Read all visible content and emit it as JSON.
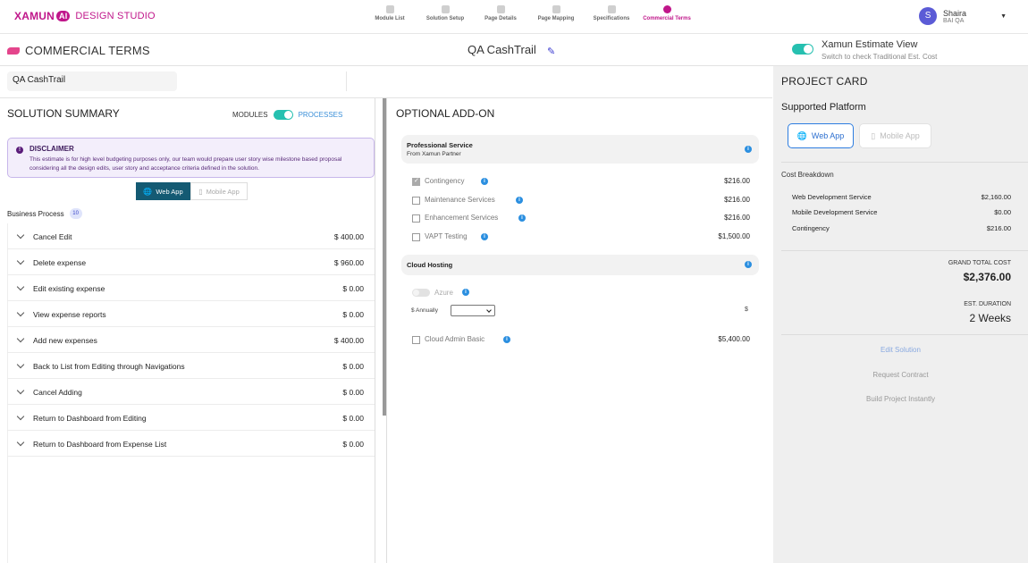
{
  "brand": {
    "prefix": "XAMUN",
    "ai": "AI",
    "suffix": "DESIGN STUDIO"
  },
  "steps": [
    {
      "label": "Module List"
    },
    {
      "label": "Solution Setup"
    },
    {
      "label": "Page Details"
    },
    {
      "label": "Page Mapping"
    },
    {
      "label": "Specifications"
    },
    {
      "label": "Commercial Terms"
    }
  ],
  "user": {
    "initial": "S",
    "name": "Shaira",
    "role": "BAI QA"
  },
  "header": {
    "title": "COMMERCIAL TERMS",
    "project_name": "QA CashTrail",
    "estimate_view_title": "Xamun Estimate View",
    "estimate_view_sub": "Switch to check Traditional Est. Cost"
  },
  "name_field": {
    "value": "QA CashTrail"
  },
  "solution_summary": {
    "title": "SOLUTION SUMMARY",
    "modules_label": "MODULES",
    "processes_label": "PROCESSES",
    "disclaimer_title": "DISCLAIMER",
    "disclaimer_text": "This estimate is for high level budgeting purposes only, our team would prepare user story wise milestone based proposal considering all the design edits, user story and acceptance criteria defined in the solution.",
    "tab_web": "Web App",
    "tab_mobile": "Mobile App",
    "bp_label": "Business Process",
    "bp_count": "10",
    "rows": [
      {
        "label": "Cancel Edit",
        "price": "$ 400.00"
      },
      {
        "label": "Delete expense",
        "price": "$ 960.00"
      },
      {
        "label": "Edit existing expense",
        "price": "$ 0.00"
      },
      {
        "label": "View expense reports",
        "price": "$ 0.00"
      },
      {
        "label": "Add new expenses",
        "price": "$ 400.00"
      },
      {
        "label": "Back to List from Editing through Navigations",
        "price": "$ 0.00"
      },
      {
        "label": "Cancel Adding",
        "price": "$ 0.00"
      },
      {
        "label": "Return to Dashboard from Editing",
        "price": "$ 0.00"
      },
      {
        "label": "Return to Dashboard from Expense List",
        "price": "$ 0.00"
      }
    ]
  },
  "addon": {
    "title": "OPTIONAL ADD-ON",
    "professional": {
      "title": "Professional Service",
      "sub": "From Xamun Partner",
      "items": [
        {
          "label": "Contingency",
          "price": "$216.00",
          "checked": true
        },
        {
          "label": "Maintenance Services",
          "price": "$216.00",
          "checked": false
        },
        {
          "label": "Enhancement Services",
          "price": "$216.00",
          "checked": false
        },
        {
          "label": "VAPT Testing",
          "price": "$1,500.00",
          "checked": false
        }
      ]
    },
    "cloud": {
      "title": "Cloud Hosting",
      "azure_label": "Azure",
      "annual_label": "$ Annually",
      "annual_value": "",
      "dollar": "$",
      "admin_label": "Cloud Admin Basic",
      "admin_price": "$5,400.00"
    }
  },
  "project_card": {
    "title": "PROJECT CARD",
    "supported_platform": "Supported Platform",
    "web": "Web App",
    "mobile": "Mobile App",
    "cost_title": "Cost Breakdown",
    "costs": [
      {
        "label": "Web Development Service",
        "value": "$2,160.00"
      },
      {
        "label": "Mobile Development Service",
        "value": "$0.00"
      },
      {
        "label": "Contingency",
        "value": "$216.00"
      }
    ],
    "grand_total_label": "GRAND TOTAL COST",
    "grand_total": "$2,376.00",
    "duration_label": "EST. DURATION",
    "duration": "2 Weeks",
    "edit_solution": "Edit Solution",
    "request_contract": "Request Contract",
    "build_project": "Build Project Instantly"
  },
  "colors": {
    "brand": "#c0168a",
    "toggle": "#26c0b0",
    "tab_active": "#145a73",
    "info": "#2b8fe0"
  }
}
